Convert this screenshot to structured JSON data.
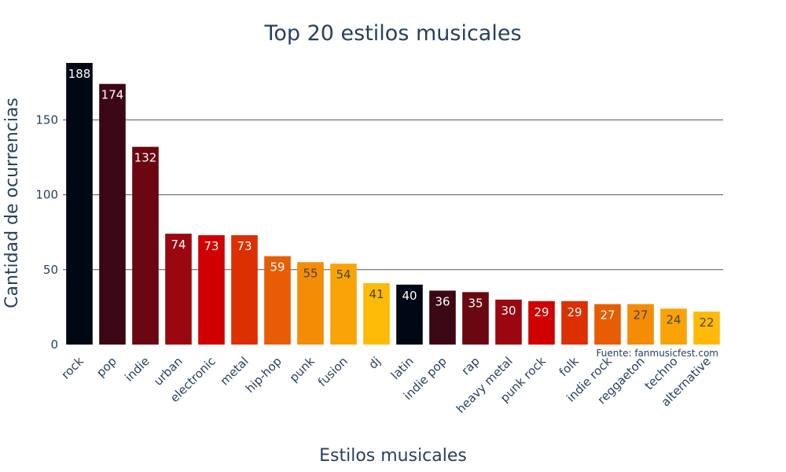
{
  "chart_data": {
    "type": "bar",
    "title": "Top 20 estilos musicales",
    "xlabel": "Estilos musicales",
    "ylabel": "Cantidad de ocurrencias",
    "categories": [
      "rock",
      "pop",
      "indie",
      "urban",
      "electronic",
      "metal",
      "hip-hop",
      "punk",
      "fusion",
      "dj",
      "latin",
      "indie pop",
      "rap",
      "heavy metal",
      "punk rock",
      "folk",
      "indie rock",
      "reggaeton",
      "techno",
      "alternative"
    ],
    "values": [
      188,
      174,
      132,
      74,
      73,
      73,
      59,
      55,
      54,
      41,
      40,
      36,
      35,
      30,
      29,
      29,
      27,
      27,
      24,
      22
    ],
    "colors": [
      "#000814",
      "#3b0714",
      "#6a0710",
      "#9a0710",
      "#d00000",
      "#dc2f02",
      "#e85d04",
      "#f48c06",
      "#faa307",
      "#ffba08",
      "#000814",
      "#3b0714",
      "#6a0710",
      "#9a0710",
      "#d00000",
      "#dc2f02",
      "#e85d04",
      "#f48c06",
      "#faa307",
      "#ffba08"
    ],
    "label_colors": [
      "#ffffff",
      "#ffffff",
      "#ffffff",
      "#ffffff",
      "#ffffff",
      "#ffffff",
      "#ffffff",
      "#444444",
      "#444444",
      "#444444",
      "#ffffff",
      "#ffffff",
      "#ffffff",
      "#ffffff",
      "#ffffff",
      "#ffffff",
      "#ffffff",
      "#444444",
      "#444444",
      "#444444"
    ],
    "yticks": [
      0,
      50,
      100,
      150
    ],
    "ylim": [
      0,
      188
    ],
    "grid": true,
    "annotation": "Fuente: fanmusicfest.com"
  }
}
